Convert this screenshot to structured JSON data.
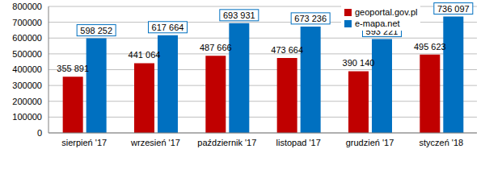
{
  "chart_data": {
    "type": "bar",
    "categories": [
      "sierpień '17",
      "wrzesień '17",
      "październik '17",
      "listopad '17",
      "grudzień '17",
      "styczeń '18"
    ],
    "series": [
      {
        "name": "geoportal.gov.pl",
        "color": "#c00000",
        "values": [
          355891,
          441064,
          487666,
          473664,
          390140,
          495623
        ],
        "value_labels": [
          "355 891",
          "441 064",
          "487 666",
          "473 664",
          "390 140",
          "495 623"
        ]
      },
      {
        "name": "e-mapa.net",
        "color": "#0070c0",
        "values": [
          598252,
          617664,
          693931,
          673236,
          593221,
          736097
        ],
        "value_labels": [
          "598 252",
          "617 664",
          "693 931",
          "673 236",
          "593 221",
          "736 097"
        ]
      }
    ],
    "ylim": [
      0,
      800000
    ],
    "yticks": [
      0,
      100000,
      200000,
      300000,
      400000,
      500000,
      600000,
      700000,
      800000
    ],
    "grid": true,
    "legend": "top-right",
    "data_labels": true
  }
}
